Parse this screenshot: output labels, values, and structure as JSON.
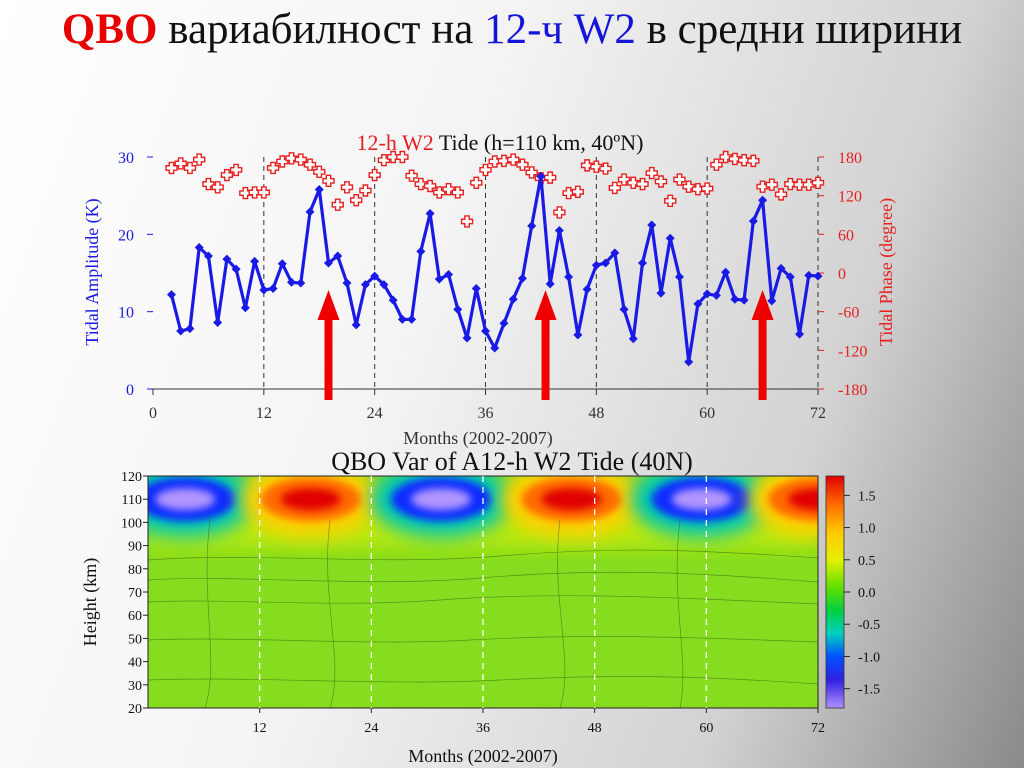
{
  "slide": {
    "title_p1": "QBO",
    "title_p2": " вариабилност на ",
    "title_p3": "12-ч",
    "title_p4": " ",
    "title_p5": "W2",
    "title_p6": " в средни ширини"
  },
  "chart_data": [
    {
      "type": "line",
      "title_red": "12-h W2",
      "title_black": " Tide (h=110 km, 40ºN)",
      "xlabel": "Months (2002-2007)",
      "ylabel": "Tidal Amplitude (K)",
      "y2label": "Tidal Phase (degree)",
      "xlim": [
        0,
        72
      ],
      "ylim": [
        0,
        30
      ],
      "y2lim": [
        -180,
        180
      ],
      "xticks": [
        0,
        12,
        24,
        36,
        48,
        60,
        72
      ],
      "yticks": [
        0,
        10,
        20,
        30
      ],
      "y2ticks": [
        -180,
        -120,
        -60,
        0,
        60,
        120,
        180
      ],
      "vlines": [
        12,
        24,
        36,
        48,
        60,
        72
      ],
      "arrows_x": [
        19,
        42.5,
        66
      ],
      "series": [
        {
          "axis": "left",
          "color": "#1a1ae6",
          "marker": "diamond",
          "x": [
            2,
            3,
            4,
            5,
            6,
            7,
            8,
            9,
            10,
            11,
            12,
            13,
            14,
            15,
            16,
            17,
            18,
            19,
            20,
            21,
            22,
            23,
            24,
            25,
            26,
            27,
            28,
            29,
            30,
            31,
            32,
            33,
            34,
            35,
            36,
            37,
            38,
            39,
            40,
            41,
            42,
            43,
            44,
            45,
            46,
            47,
            48,
            49,
            50,
            51,
            52,
            53,
            54,
            55,
            56,
            57,
            58,
            59,
            60,
            61,
            62,
            63,
            64,
            65,
            66,
            67,
            68,
            69,
            70,
            71,
            72
          ],
          "y": [
            12.2,
            7.5,
            7.8,
            18.3,
            17.2,
            8.6,
            16.8,
            15.5,
            10.5,
            16.5,
            12.8,
            13,
            16.2,
            13.8,
            13.7,
            22.9,
            25.8,
            16.3,
            17.2,
            13.7,
            8.3,
            13.5,
            14.6,
            13.5,
            11.5,
            9,
            9,
            17.8,
            22.7,
            14.2,
            14.8,
            10.3,
            6.6,
            13,
            7.5,
            5.3,
            8.5,
            11.6,
            14.3,
            21.1,
            27.5,
            13.6,
            20.5,
            14.5,
            7,
            12.9,
            16,
            16.3,
            17.6,
            10.3,
            6.5,
            16.3,
            21.2,
            12.4,
            19.5,
            14.5,
            3.5,
            11,
            12.3,
            12.1,
            15.1,
            11.6,
            11.5,
            21.7,
            24.4,
            11.4,
            15.6,
            14.5,
            7.1,
            14.7,
            14.6
          ]
        },
        {
          "axis": "right",
          "color": "#e62020",
          "marker": "cross",
          "x": [
            2,
            3,
            4,
            5,
            6,
            7,
            8,
            9,
            10,
            11,
            12,
            13,
            14,
            15,
            16,
            17,
            18,
            19,
            20,
            21,
            22,
            23,
            24,
            25,
            26,
            27,
            28,
            29,
            30,
            31,
            32,
            33,
            34,
            35,
            36,
            37,
            38,
            39,
            40,
            41,
            42,
            43,
            44,
            45,
            46,
            47,
            48,
            49,
            50,
            51,
            52,
            53,
            54,
            55,
            56,
            57,
            58,
            59,
            60,
            61,
            62,
            63,
            64,
            65,
            66,
            67,
            68,
            69,
            70,
            71,
            72
          ],
          "y": [
            163,
            170,
            163,
            176,
            138,
            133,
            152,
            160,
            124,
            125,
            125,
            163,
            173,
            178,
            176,
            168,
            157,
            143,
            106,
            133,
            113,
            128,
            152,
            175,
            180,
            180,
            151,
            138,
            135,
            125,
            130,
            125,
            80,
            140,
            160,
            173,
            174,
            176,
            168,
            156,
            147,
            148,
            94,
            124,
            126,
            167,
            165,
            162,
            132,
            145,
            140,
            138,
            155,
            142,
            112,
            145,
            134,
            130,
            131,
            168,
            180,
            177,
            175,
            174,
            134,
            137,
            122,
            138,
            137,
            137,
            140
          ]
        }
      ]
    },
    {
      "type": "heatmap",
      "title": "QBO Var of A12-h W2 Tide  (40N)",
      "xlabel": "Months  (2002-2007)",
      "ylabel": "Height  (km)",
      "xlim": [
        0,
        72
      ],
      "ylim": [
        20,
        120
      ],
      "xticks": [
        12,
        24,
        36,
        48,
        60,
        72
      ],
      "yticks": [
        20,
        30,
        40,
        50,
        60,
        70,
        80,
        90,
        100,
        110,
        120
      ],
      "colorbar_ticks": [
        "1.5",
        "1.0",
        "0.5",
        "0.0",
        "-0.5",
        "-1.0",
        "-1.5"
      ],
      "colorbar_range": [
        -1.8,
        1.8
      ],
      "vlines": [
        12,
        24,
        36,
        48,
        60
      ],
      "features": [
        {
          "x": 4,
          "y": 110,
          "value": -1.8
        },
        {
          "x": 17.5,
          "y": 110,
          "value": 1.8
        },
        {
          "x": 31.5,
          "y": 110,
          "value": -1.8
        },
        {
          "x": 45.5,
          "y": 110,
          "value": 1.8
        },
        {
          "x": 59.5,
          "y": 110,
          "value": -1.8
        },
        {
          "x": 72,
          "y": 110,
          "value": 1.6
        }
      ]
    }
  ]
}
